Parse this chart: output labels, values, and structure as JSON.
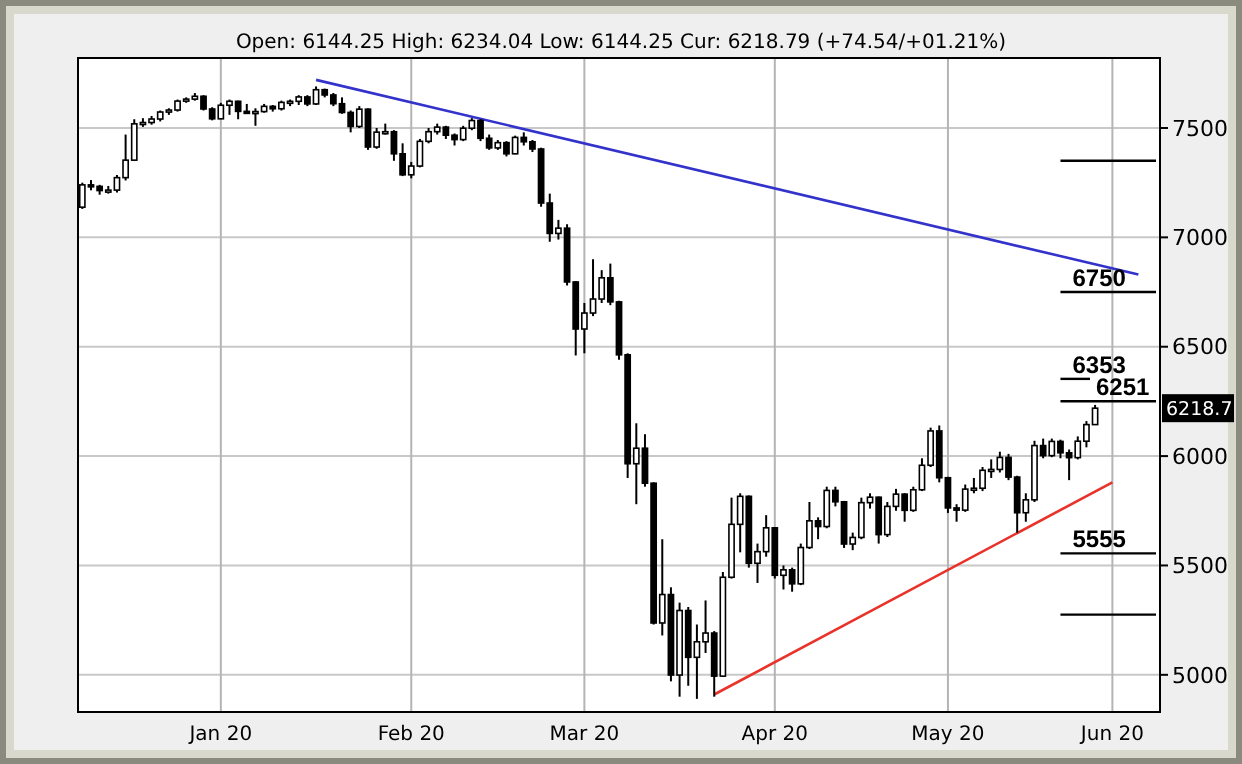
{
  "chart_data": {
    "type": "candlestick",
    "title": "Open: 6144.25 High: 6234.04 Low: 6144.25 Cur: 6218.79 (+74.54/+01.21%)",
    "categories": [
      null,
      null,
      null,
      null,
      null,
      null,
      null,
      null,
      null,
      null,
      null,
      null,
      null,
      null,
      null,
      null,
      "Jan 20",
      null,
      null,
      null,
      null,
      null,
      null,
      null,
      null,
      null,
      null,
      null,
      null,
      null,
      null,
      null,
      null,
      null,
      null,
      null,
      null,
      null,
      "Feb 20",
      null,
      null,
      null,
      null,
      null,
      null,
      null,
      null,
      null,
      null,
      null,
      null,
      null,
      null,
      null,
      null,
      null,
      null,
      null,
      "Mar 20",
      null,
      null,
      null,
      null,
      null,
      null,
      null,
      null,
      null,
      null,
      null,
      null,
      null,
      null,
      null,
      null,
      null,
      null,
      null,
      null,
      null,
      "Apr 20",
      null,
      null,
      null,
      null,
      null,
      null,
      null,
      null,
      null,
      null,
      null,
      null,
      null,
      null,
      null,
      null,
      null,
      null,
      null,
      "May 20",
      null,
      null,
      null,
      null,
      null,
      null,
      null,
      null,
      null,
      null,
      null,
      null,
      null,
      null,
      null,
      null,
      null,
      null,
      "Jun 20",
      null,
      null,
      null,
      null,
      null
    ],
    "ohlc": [
      [
        7138,
        7250,
        7130,
        7240
      ],
      [
        7240,
        7262,
        7215,
        7233
      ],
      [
        7233,
        7240,
        7195,
        7214
      ],
      [
        7214,
        7235,
        7200,
        7216
      ],
      [
        7216,
        7285,
        7205,
        7273
      ],
      [
        7273,
        7470,
        7260,
        7353
      ],
      [
        7353,
        7540,
        7350,
        7519
      ],
      [
        7519,
        7545,
        7505,
        7525
      ],
      [
        7525,
        7555,
        7515,
        7541
      ],
      [
        7541,
        7580,
        7530,
        7573
      ],
      [
        7573,
        7590,
        7560,
        7582
      ],
      [
        7582,
        7630,
        7575,
        7623
      ],
      [
        7623,
        7640,
        7615,
        7632
      ],
      [
        7632,
        7660,
        7625,
        7645
      ],
      [
        7645,
        7650,
        7580,
        7587
      ],
      [
        7587,
        7595,
        7535,
        7542
      ],
      [
        7542,
        7615,
        7540,
        7604
      ],
      [
        7604,
        7630,
        7560,
        7622
      ],
      [
        7622,
        7625,
        7540,
        7576
      ],
      [
        7576,
        7610,
        7565,
        7573
      ],
      [
        7573,
        7590,
        7510,
        7575
      ],
      [
        7575,
        7610,
        7570,
        7599
      ],
      [
        7599,
        7605,
        7575,
        7588
      ],
      [
        7588,
        7625,
        7580,
        7617
      ],
      [
        7617,
        7630,
        7600,
        7622
      ],
      [
        7622,
        7650,
        7605,
        7642
      ],
      [
        7642,
        7650,
        7600,
        7610
      ],
      [
        7610,
        7690,
        7605,
        7675
      ],
      [
        7675,
        7680,
        7640,
        7651
      ],
      [
        7651,
        7660,
        7600,
        7611
      ],
      [
        7611,
        7640,
        7565,
        7571
      ],
      [
        7571,
        7580,
        7480,
        7507
      ],
      [
        7507,
        7600,
        7500,
        7586
      ],
      [
        7586,
        7590,
        7400,
        7413
      ],
      [
        7413,
        7500,
        7405,
        7481
      ],
      [
        7481,
        7520,
        7470,
        7483
      ],
      [
        7483,
        7490,
        7350,
        7382
      ],
      [
        7382,
        7430,
        7280,
        7286
      ],
      [
        7286,
        7345,
        7270,
        7326
      ],
      [
        7326,
        7450,
        7320,
        7439
      ],
      [
        7439,
        7500,
        7430,
        7483
      ],
      [
        7483,
        7520,
        7470,
        7504
      ],
      [
        7504,
        7510,
        7450,
        7467
      ],
      [
        7467,
        7475,
        7420,
        7447
      ],
      [
        7447,
        7510,
        7440,
        7499
      ],
      [
        7499,
        7545,
        7490,
        7534
      ],
      [
        7534,
        7540,
        7440,
        7453
      ],
      [
        7453,
        7470,
        7400,
        7409
      ],
      [
        7409,
        7445,
        7400,
        7433
      ],
      [
        7433,
        7440,
        7370,
        7382
      ],
      [
        7382,
        7465,
        7380,
        7457
      ],
      [
        7457,
        7480,
        7420,
        7437
      ],
      [
        7437,
        7445,
        7390,
        7404
      ],
      [
        7404,
        7410,
        7140,
        7157
      ],
      [
        7157,
        7200,
        6980,
        7018
      ],
      [
        7018,
        7080,
        6990,
        7042
      ],
      [
        7042,
        7060,
        6780,
        6796
      ],
      [
        6796,
        6800,
        6460,
        6581
      ],
      [
        6581,
        6700,
        6470,
        6654
      ],
      [
        6654,
        6900,
        6640,
        6718
      ],
      [
        6718,
        6850,
        6700,
        6815
      ],
      [
        6815,
        6880,
        6690,
        6705
      ],
      [
        6705,
        6710,
        6440,
        6463
      ],
      [
        6463,
        6470,
        5900,
        5965
      ],
      [
        5965,
        6150,
        5780,
        6036
      ],
      [
        6036,
        6100,
        5860,
        5876
      ],
      [
        5876,
        5880,
        5230,
        5237
      ],
      [
        5237,
        5620,
        5180,
        5367
      ],
      [
        5367,
        5400,
        4970,
        4999
      ],
      [
        4999,
        5330,
        4900,
        5294
      ],
      [
        5294,
        5310,
        4950,
        5080
      ],
      [
        5080,
        5230,
        4890,
        5151
      ],
      [
        5151,
        5340,
        5100,
        5191
      ],
      [
        5191,
        5200,
        4900,
        4994
      ],
      [
        4994,
        5470,
        4990,
        5446
      ],
      [
        5446,
        5810,
        5440,
        5688
      ],
      [
        5688,
        5830,
        5560,
        5816
      ],
      [
        5816,
        5820,
        5490,
        5510
      ],
      [
        5510,
        5600,
        5420,
        5563
      ],
      [
        5563,
        5730,
        5540,
        5672
      ],
      [
        5672,
        5675,
        5440,
        5455
      ],
      [
        5455,
        5500,
        5390,
        5480
      ],
      [
        5480,
        5490,
        5380,
        5416
      ],
      [
        5416,
        5600,
        5410,
        5582
      ],
      [
        5582,
        5790,
        5575,
        5704
      ],
      [
        5704,
        5720,
        5620,
        5678
      ],
      [
        5678,
        5860,
        5670,
        5843
      ],
      [
        5843,
        5860,
        5770,
        5791
      ],
      [
        5791,
        5795,
        5580,
        5598
      ],
      [
        5598,
        5650,
        5570,
        5628
      ],
      [
        5628,
        5810,
        5620,
        5787
      ],
      [
        5787,
        5830,
        5760,
        5812
      ],
      [
        5812,
        5815,
        5600,
        5641
      ],
      [
        5641,
        5790,
        5630,
        5770
      ],
      [
        5770,
        5850,
        5750,
        5826
      ],
      [
        5826,
        5830,
        5700,
        5752
      ],
      [
        5752,
        5860,
        5745,
        5846
      ],
      [
        5846,
        5990,
        5840,
        5958
      ],
      [
        5958,
        6130,
        5950,
        6115
      ],
      [
        6115,
        6140,
        5880,
        5901
      ],
      [
        5901,
        5905,
        5740,
        5763
      ],
      [
        5763,
        5780,
        5700,
        5753
      ],
      [
        5753,
        5870,
        5745,
        5849
      ],
      [
        5849,
        5900,
        5830,
        5853
      ],
      [
        5853,
        5950,
        5840,
        5935
      ],
      [
        5935,
        5985,
        5900,
        5939
      ],
      [
        5939,
        6020,
        5925,
        5994
      ],
      [
        5994,
        6010,
        5890,
        5904
      ],
      [
        5904,
        5910,
        5650,
        5741
      ],
      [
        5741,
        5830,
        5700,
        5800
      ],
      [
        5800,
        6070,
        5790,
        6048
      ],
      [
        6048,
        6080,
        5990,
        6002
      ],
      [
        6002,
        6080,
        5995,
        6067
      ],
      [
        6067,
        6075,
        5990,
        6015
      ],
      [
        6015,
        6030,
        5890,
        5993
      ],
      [
        5993,
        6090,
        5985,
        6068
      ],
      [
        6068,
        6160,
        6040,
        6144
      ],
      [
        6144,
        6234,
        6144,
        6219
      ],
      null,
      null,
      null,
      null,
      null,
      null,
      null
    ],
    "series": [
      {
        "type": "line",
        "color": "#3333cc",
        "values": [
          null,
          null,
          null,
          null,
          null,
          null,
          null,
          null,
          null,
          null,
          null,
          null,
          null,
          null,
          null,
          null,
          null,
          null,
          null,
          null,
          null,
          null,
          null,
          null,
          null,
          null,
          null,
          7720,
          null,
          null,
          null,
          null,
          null,
          null,
          null,
          null,
          null,
          null,
          null,
          null,
          null,
          null,
          null,
          null,
          null,
          null,
          null,
          null,
          null,
          null,
          null,
          null,
          null,
          null,
          null,
          null,
          null,
          null,
          null,
          null,
          null,
          null,
          null,
          null,
          null,
          null,
          null,
          null,
          null,
          null,
          null,
          null,
          null,
          null,
          null,
          null,
          null,
          null,
          null,
          null,
          null,
          null,
          null,
          null,
          null,
          null,
          null,
          null,
          null,
          null,
          null,
          null,
          null,
          null,
          null,
          null,
          null,
          null,
          null,
          null,
          null,
          null,
          null,
          null,
          null,
          null,
          null,
          null,
          null,
          null,
          null,
          null,
          null,
          null,
          null,
          null,
          null,
          null,
          null,
          null,
          null,
          null,
          6830,
          null,
          null
        ]
      },
      {
        "type": "line",
        "color": "#e8322a",
        "values": [
          null,
          null,
          null,
          null,
          null,
          null,
          null,
          null,
          null,
          null,
          null,
          null,
          null,
          null,
          null,
          null,
          null,
          null,
          null,
          null,
          null,
          null,
          null,
          null,
          null,
          null,
          null,
          null,
          null,
          null,
          null,
          null,
          null,
          null,
          null,
          null,
          null,
          null,
          null,
          null,
          null,
          null,
          null,
          null,
          null,
          null,
          null,
          null,
          null,
          null,
          null,
          null,
          null,
          null,
          null,
          null,
          null,
          null,
          null,
          null,
          null,
          null,
          null,
          null,
          null,
          null,
          null,
          null,
          null,
          null,
          null,
          null,
          null,
          4910,
          null,
          null,
          null,
          null,
          null,
          null,
          null,
          null,
          null,
          null,
          null,
          null,
          null,
          null,
          null,
          null,
          null,
          null,
          null,
          null,
          null,
          null,
          null,
          null,
          null,
          null,
          null,
          null,
          null,
          null,
          null,
          null,
          null,
          null,
          null,
          null,
          null,
          null,
          null,
          null,
          null,
          null,
          null,
          null,
          null,
          5880,
          null,
          null,
          null,
          null,
          null
        ]
      }
    ],
    "ylim": [
      4830,
      7820
    ],
    "yticks": [
      5000,
      5500,
      6000,
      6500,
      7000,
      7500
    ],
    "grid": true,
    "ref_lines": [
      {
        "axis": "y",
        "value": 7350,
        "label": null,
        "color": "#000000"
      },
      {
        "axis": "y",
        "value": 6750,
        "label": "6750",
        "color": "#000000"
      },
      {
        "axis": "y",
        "value": 6353,
        "label": "6353",
        "color": "#000000"
      },
      {
        "axis": "y",
        "value": 6251,
        "label": "6251",
        "color": "#000000"
      },
      {
        "axis": "y",
        "value": 5555,
        "label": "5555",
        "color": "#000000"
      },
      {
        "axis": "y",
        "value": 5275,
        "label": null,
        "color": "#000000"
      }
    ],
    "annotations": [
      "6218.7"
    ]
  }
}
